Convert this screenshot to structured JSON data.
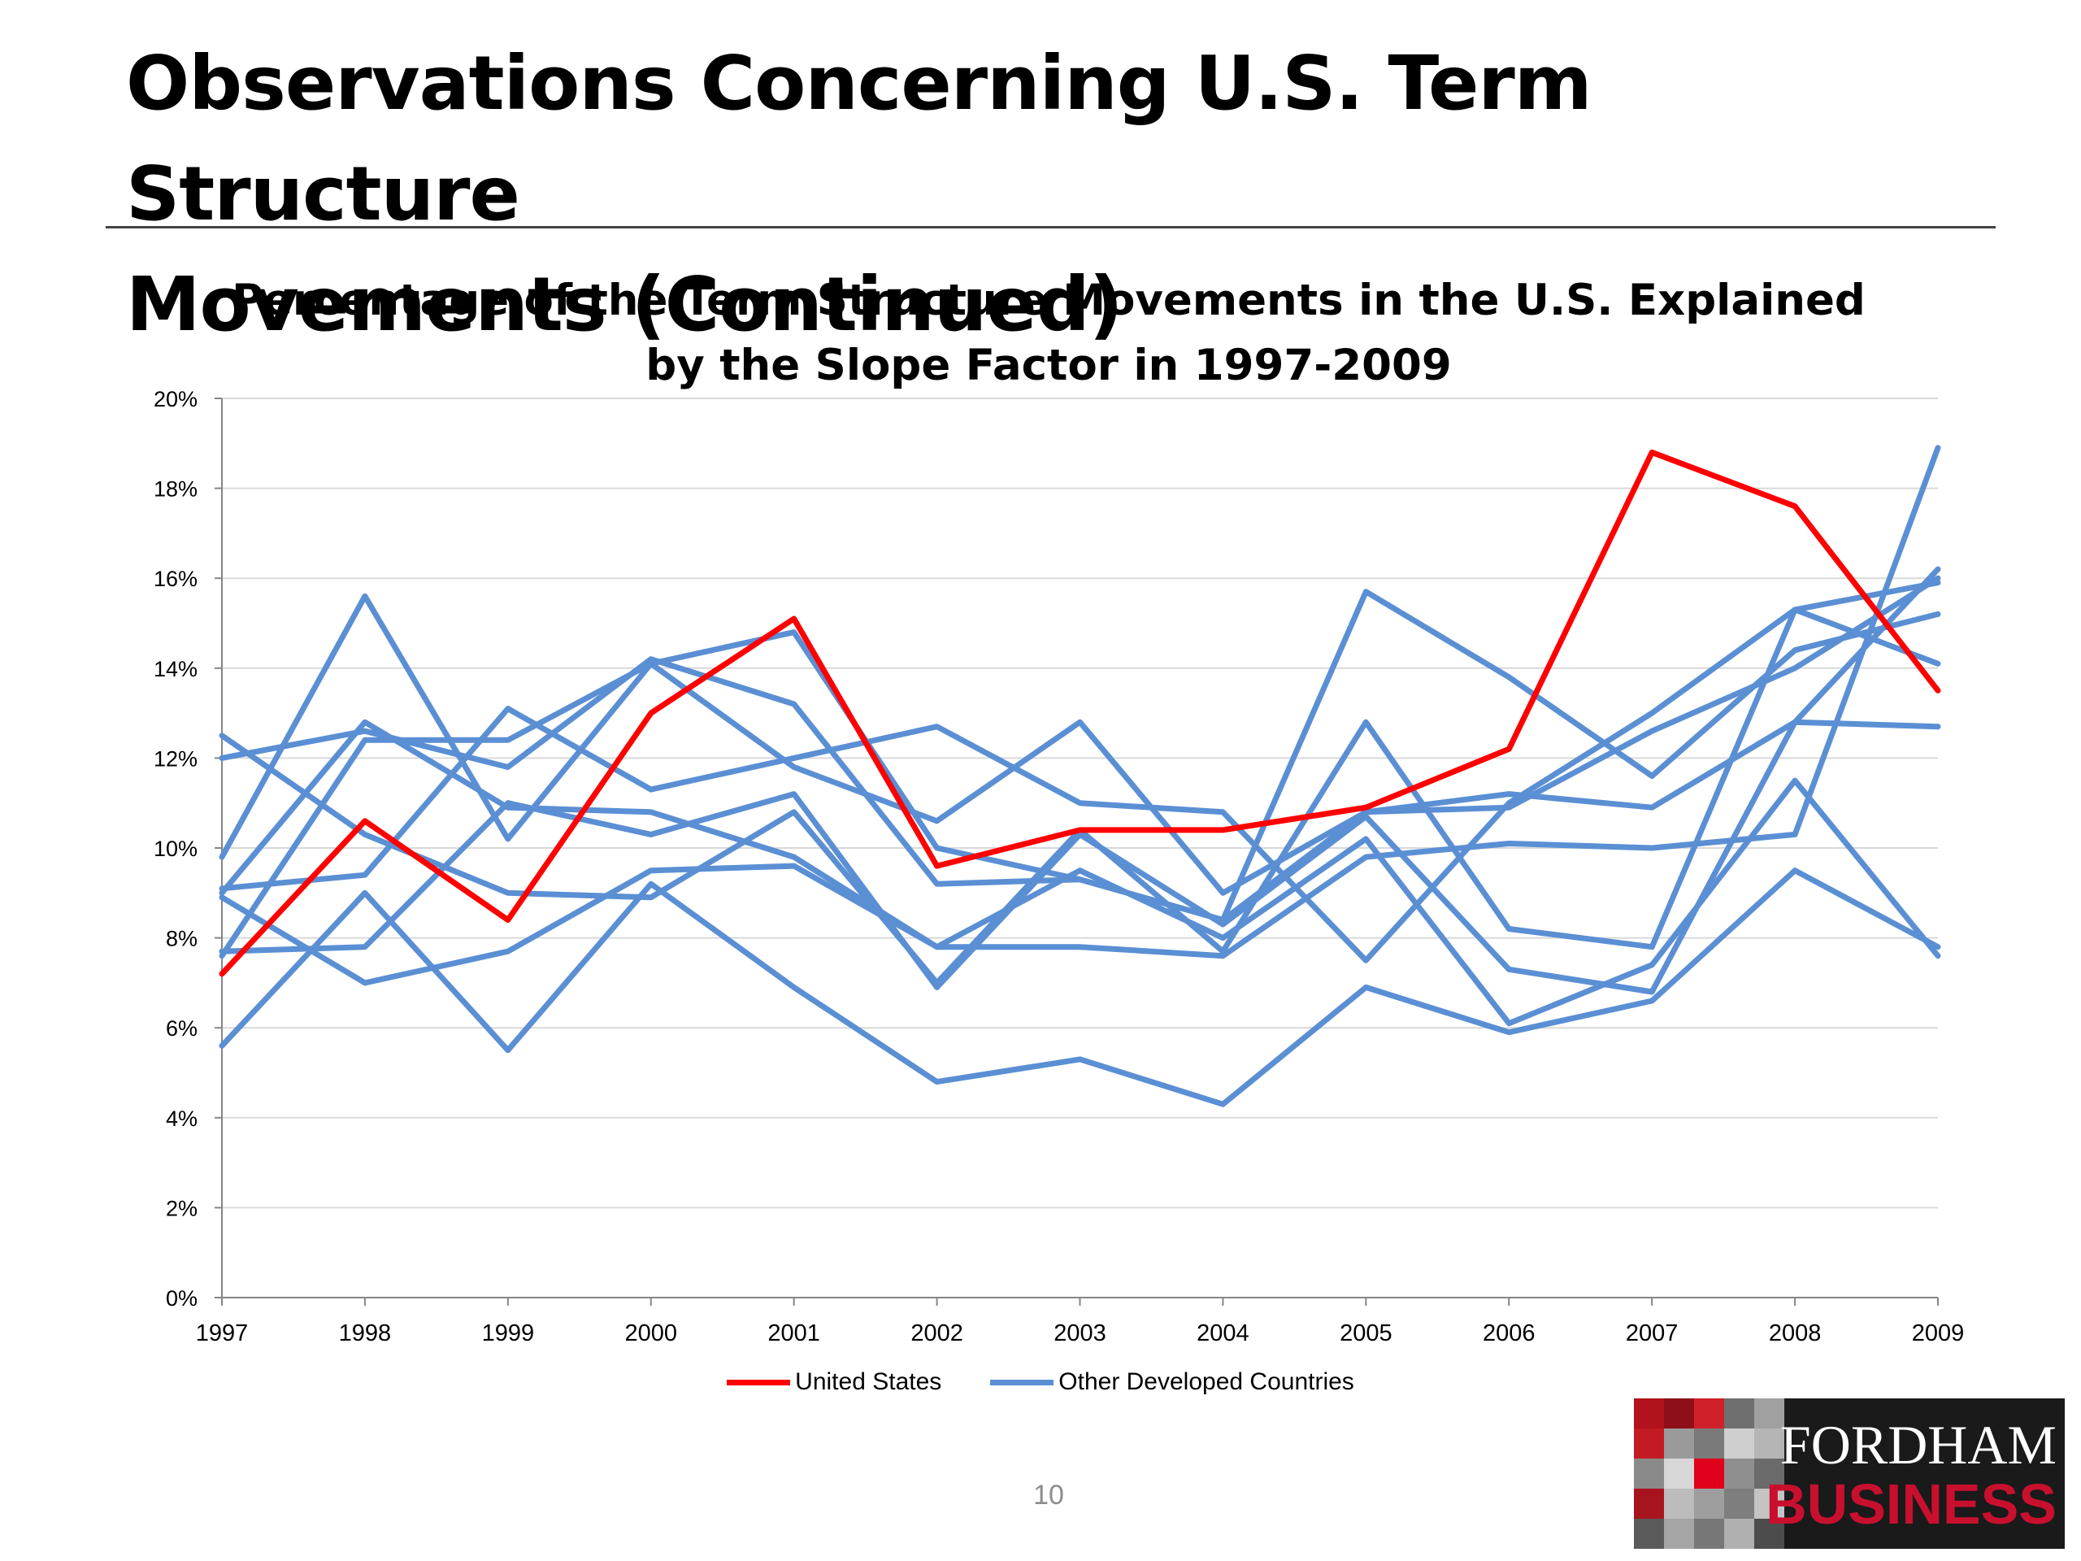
{
  "slide": {
    "title_line1": "Observations Concerning U.S. Term Structure",
    "title_line2": "Movements (Continued)",
    "page_number": "10"
  },
  "logo": {
    "line1": "FORDHAM",
    "line2": "BUSINESS"
  },
  "colors": {
    "us": "#ff0000",
    "other": "#5b8fd4",
    "grid": "#d9d9d9",
    "axis": "#868686"
  },
  "chart_data": {
    "type": "line",
    "title_line1": "Percentage of the Term Structure Movements in the U.S. Explained",
    "title_line2": "by the Slope Factor in 1997-2009",
    "xlabel": "",
    "ylabel": "",
    "x": [
      1997,
      1998,
      1999,
      2000,
      2001,
      2002,
      2003,
      2004,
      2005,
      2006,
      2007,
      2008,
      2009
    ],
    "ylim": [
      0,
      20
    ],
    "yticks": [
      "0%",
      "2%",
      "4%",
      "6%",
      "8%",
      "10%",
      "12%",
      "14%",
      "16%",
      "18%",
      "20%"
    ],
    "legend_position": "bottom",
    "grid": true,
    "legend": [
      {
        "label": "United States",
        "color": "#ff0000"
      },
      {
        "label": "Other Developed Countries",
        "color": "#5b8fd4"
      }
    ],
    "series": [
      {
        "name": "United States",
        "group": "us",
        "values": [
          7.2,
          10.6,
          8.4,
          13.0,
          15.1,
          9.6,
          10.4,
          10.4,
          10.9,
          12.2,
          18.8,
          17.6,
          13.5
        ]
      },
      {
        "group": "other",
        "values": [
          9.8,
          15.6,
          10.2,
          14.1,
          14.8,
          10.0,
          9.3,
          8.4,
          15.7,
          13.8,
          11.6,
          14.4,
          15.2
        ]
      },
      {
        "group": "other",
        "values": [
          12.5,
          10.3,
          9.0,
          8.9,
          10.8,
          7.0,
          10.4,
          7.7,
          12.8,
          8.2,
          7.8,
          15.3,
          14.1
        ]
      },
      {
        "group": "other",
        "values": [
          12.0,
          12.6,
          11.8,
          14.2,
          13.2,
          9.2,
          9.3,
          8.4,
          10.8,
          11.2,
          10.9,
          12.8,
          12.7
        ]
      },
      {
        "group": "other",
        "values": [
          9.0,
          12.8,
          10.9,
          10.8,
          9.8,
          7.8,
          9.5,
          8.0,
          10.2,
          6.1,
          7.4,
          11.5,
          7.6
        ]
      },
      {
        "group": "other",
        "values": [
          9.1,
          9.4,
          13.1,
          11.3,
          12.0,
          12.7,
          11.0,
          10.8,
          7.5,
          11.0,
          13.0,
          15.3,
          15.9
        ]
      },
      {
        "group": "other",
        "values": [
          7.7,
          7.8,
          11.0,
          10.3,
          11.2,
          6.9,
          10.3,
          8.3,
          10.7,
          7.3,
          6.8,
          12.8,
          16.2
        ]
      },
      {
        "group": "other",
        "values": [
          8.9,
          7.0,
          7.7,
          9.5,
          9.6,
          7.8,
          7.8,
          7.6,
          9.8,
          10.1,
          10.0,
          10.3,
          18.9
        ]
      },
      {
        "group": "other",
        "values": [
          5.6,
          9.0,
          5.5,
          9.2,
          6.9,
          4.8,
          5.3,
          4.3,
          6.9,
          5.9,
          6.6,
          9.5,
          7.8
        ]
      },
      {
        "group": "other",
        "values": [
          7.6,
          12.4,
          12.4,
          14.1,
          11.8,
          10.6,
          12.8,
          9.0,
          10.8,
          10.9,
          12.6,
          14.0,
          16.0
        ]
      }
    ]
  }
}
